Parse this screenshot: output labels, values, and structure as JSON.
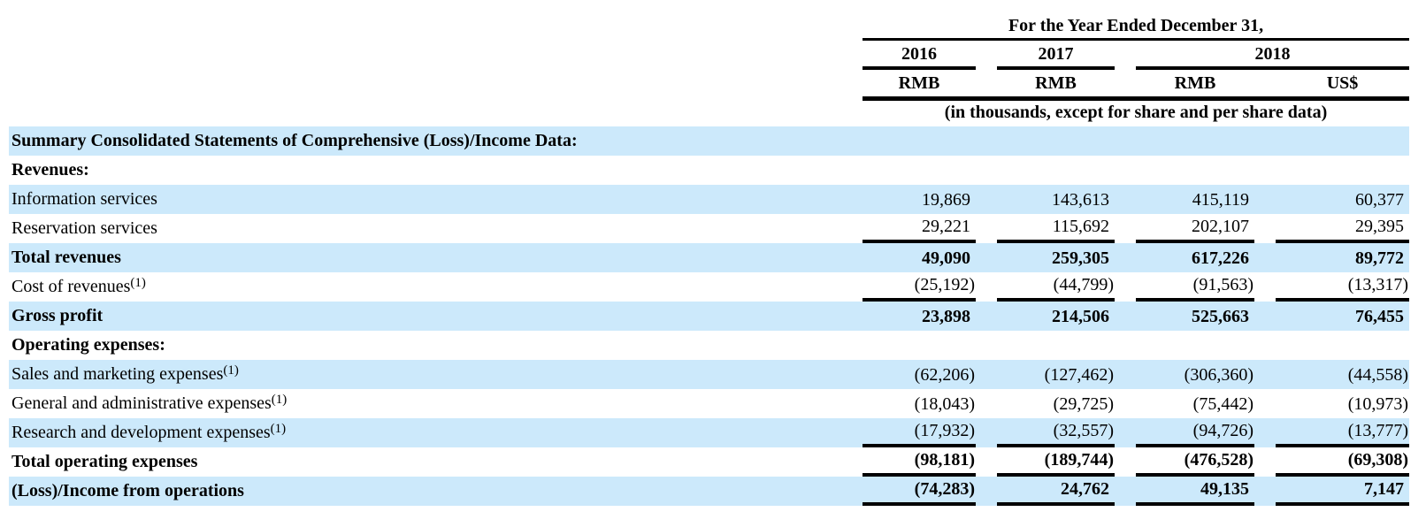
{
  "header": {
    "period_title": "For the Year Ended December 31,",
    "years": {
      "y2016": "2016",
      "y2017": "2017",
      "y2018": "2018"
    },
    "currencies": {
      "c1": "RMB",
      "c2": "RMB",
      "c3": "RMB",
      "c4": "US$"
    },
    "units_note": "(in thousands, except for share and per share data)"
  },
  "rows": [
    {
      "label": "Summary Consolidated Statements of Comprehensive (Loss)/Income Data:",
      "values": [
        "",
        "",
        "",
        ""
      ]
    },
    {
      "label": "Revenues:",
      "values": [
        "",
        "",
        "",
        ""
      ]
    },
    {
      "label": "Information services",
      "values": [
        "19,869",
        "143,613",
        "415,119",
        "60,377"
      ]
    },
    {
      "label": "Reservation services",
      "values": [
        "29,221",
        "115,692",
        "202,107",
        "29,395"
      ]
    },
    {
      "label": "Total revenues",
      "values": [
        "49,090",
        "259,305",
        "617,226",
        "89,772"
      ]
    },
    {
      "label": "Cost of revenues",
      "footnote": "(1)",
      "values": [
        "(25,192)",
        "(44,799)",
        "(91,563)",
        "(13,317)"
      ]
    },
    {
      "label": "Gross profit",
      "values": [
        "23,898",
        "214,506",
        "525,663",
        "76,455"
      ]
    },
    {
      "label": "Operating expenses:",
      "values": [
        "",
        "",
        "",
        ""
      ]
    },
    {
      "label": "Sales and marketing expenses",
      "footnote": "(1)",
      "values": [
        "(62,206)",
        "(127,462)",
        "(306,360)",
        "(44,558)"
      ]
    },
    {
      "label": "General and administrative expenses",
      "footnote": "(1)",
      "values": [
        "(18,043)",
        "(29,725)",
        "(75,442)",
        "(10,973)"
      ]
    },
    {
      "label": "Research and development expenses",
      "footnote": "(1)",
      "values": [
        "(17,932)",
        "(32,557)",
        "(94,726)",
        "(13,777)"
      ]
    },
    {
      "label": "Total operating expenses",
      "values": [
        "(98,181)",
        "(189,744)",
        "(476,528)",
        "(69,308)"
      ]
    },
    {
      "label": "(Loss)/Income from operations",
      "values": [
        "(74,283)",
        "24,762",
        "49,135",
        "7,147"
      ]
    }
  ],
  "colors": {
    "highlight": "#cce9fb",
    "rule": "#000000",
    "text": "#000000"
  }
}
